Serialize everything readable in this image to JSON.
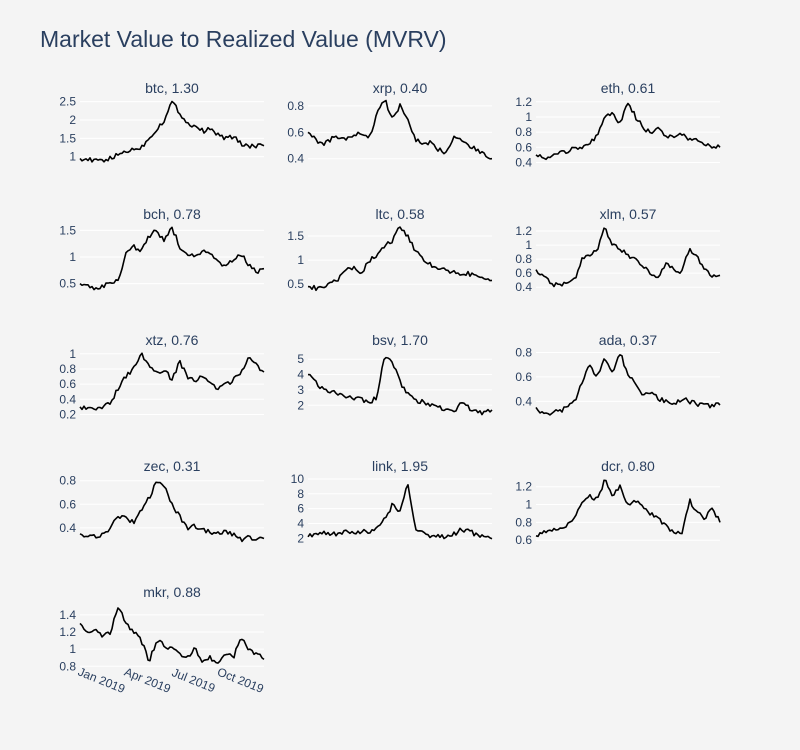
{
  "title": "Market Value to Realized Value (MVRV)",
  "colors": {
    "background": "#f4f4f4",
    "text": "#2a3f5f",
    "line": "#000000",
    "grid": "#ffffff"
  },
  "x_tick_labels": [
    "Jan 2019",
    "Apr 2019",
    "Jul 2019",
    "Oct 2019"
  ],
  "chart_data": [
    {
      "type": "line",
      "title": "btc, 1.30",
      "series": [
        {
          "values": [
            0.95,
            0.92,
            0.88,
            0.9,
            0.95,
            1.05,
            1.15,
            1.2,
            1.25,
            1.5,
            1.75,
            2.0,
            2.5,
            2.2,
            1.9,
            1.85,
            1.7,
            1.75,
            1.6,
            1.5,
            1.55,
            1.35,
            1.3,
            1.28,
            1.3
          ]
        }
      ],
      "yticks": [
        1,
        1.5,
        2,
        2.5
      ],
      "ytick_labels": [
        "1",
        "1.5",
        "2",
        "2.5"
      ],
      "ylim": [
        0.8,
        2.6
      ]
    },
    {
      "type": "line",
      "title": "xrp, 0.40",
      "series": [
        {
          "values": [
            0.6,
            0.55,
            0.5,
            0.55,
            0.56,
            0.55,
            0.57,
            0.6,
            0.55,
            0.75,
            0.85,
            0.7,
            0.8,
            0.7,
            0.55,
            0.5,
            0.52,
            0.47,
            0.45,
            0.57,
            0.55,
            0.5,
            0.47,
            0.43,
            0.4
          ]
        }
      ],
      "yticks": [
        0.4,
        0.6,
        0.8
      ],
      "ytick_labels": [
        "0.4",
        "0.6",
        "0.8"
      ],
      "ylim": [
        0.36,
        0.86
      ]
    },
    {
      "type": "line",
      "title": "eth, 0.61",
      "series": [
        {
          "values": [
            0.5,
            0.45,
            0.45,
            0.55,
            0.55,
            0.6,
            0.6,
            0.65,
            0.75,
            1.0,
            1.05,
            0.9,
            1.2,
            1.0,
            0.85,
            0.8,
            0.85,
            0.75,
            0.75,
            0.78,
            0.7,
            0.7,
            0.65,
            0.6,
            0.6
          ]
        }
      ],
      "yticks": [
        0.4,
        0.6,
        0.8,
        1,
        1.2
      ],
      "ytick_labels": [
        "0.4",
        "0.6",
        "0.8",
        "1",
        "1.2"
      ],
      "ylim": [
        0.38,
        1.25
      ]
    },
    {
      "type": "line",
      "title": "bch, 0.78",
      "series": [
        {
          "values": [
            0.5,
            0.45,
            0.42,
            0.45,
            0.5,
            0.55,
            1.1,
            1.2,
            1.1,
            1.4,
            1.5,
            1.3,
            1.55,
            1.2,
            1.05,
            1.0,
            1.1,
            1.05,
            0.9,
            0.8,
            0.95,
            1.05,
            0.85,
            0.72,
            0.78
          ]
        }
      ],
      "yticks": [
        0.5,
        1,
        1.5
      ],
      "ytick_labels": [
        "0.5",
        "1",
        "1.5"
      ],
      "ylim": [
        0.38,
        1.62
      ]
    },
    {
      "type": "line",
      "title": "ltc, 0.58",
      "series": [
        {
          "values": [
            0.45,
            0.42,
            0.45,
            0.5,
            0.6,
            0.8,
            0.85,
            0.75,
            1.0,
            1.1,
            1.3,
            1.4,
            1.7,
            1.5,
            1.2,
            1.0,
            0.9,
            0.85,
            0.8,
            0.75,
            0.7,
            0.72,
            0.65,
            0.6,
            0.58
          ]
        }
      ],
      "yticks": [
        0.5,
        1,
        1.5
      ],
      "ytick_labels": [
        "0.5",
        "1",
        "1.5"
      ],
      "ylim": [
        0.38,
        1.75
      ]
    },
    {
      "type": "line",
      "title": "xlm, 0.57",
      "series": [
        {
          "values": [
            0.65,
            0.55,
            0.45,
            0.42,
            0.45,
            0.5,
            0.8,
            0.85,
            0.95,
            1.25,
            1.0,
            0.95,
            0.85,
            0.8,
            0.7,
            0.6,
            0.55,
            0.75,
            0.65,
            0.6,
            0.95,
            0.85,
            0.65,
            0.55,
            0.57
          ]
        }
      ],
      "yticks": [
        0.4,
        0.6,
        0.8,
        1,
        1.2
      ],
      "ytick_labels": [
        "0.4",
        "0.6",
        "0.8",
        "1",
        "1.2"
      ],
      "ylim": [
        0.36,
        1.3
      ]
    },
    {
      "type": "line",
      "title": "xtz, 0.76",
      "series": [
        {
          "values": [
            0.3,
            0.28,
            0.27,
            0.3,
            0.35,
            0.55,
            0.7,
            0.8,
            1.0,
            0.85,
            0.75,
            0.8,
            0.65,
            0.9,
            0.7,
            0.65,
            0.7,
            0.6,
            0.55,
            0.6,
            0.65,
            0.75,
            0.95,
            0.85,
            0.76
          ]
        }
      ],
      "yticks": [
        0.2,
        0.4,
        0.6,
        0.8,
        1
      ],
      "ytick_labels": [
        "0.2",
        "0.4",
        "0.6",
        "0.8",
        "1"
      ],
      "ylim": [
        0.18,
        1.05
      ]
    },
    {
      "type": "line",
      "title": "bsv, 1.70",
      "series": [
        {
          "values": [
            4.0,
            3.5,
            3.0,
            2.9,
            2.8,
            2.6,
            2.5,
            2.4,
            2.2,
            2.5,
            5.3,
            4.8,
            3.5,
            2.8,
            2.3,
            2.2,
            2.0,
            1.9,
            1.7,
            1.5,
            2.2,
            1.8,
            1.6,
            1.5,
            1.7
          ]
        }
      ],
      "yticks": [
        2,
        3,
        4,
        5
      ],
      "ytick_labels": [
        "2",
        "3",
        "4",
        "5"
      ],
      "ylim": [
        1.3,
        5.6
      ]
    },
    {
      "type": "line",
      "title": "ada, 0.37",
      "series": [
        {
          "values": [
            0.35,
            0.3,
            0.3,
            0.32,
            0.35,
            0.4,
            0.55,
            0.7,
            0.6,
            0.75,
            0.65,
            0.8,
            0.6,
            0.55,
            0.45,
            0.48,
            0.42,
            0.4,
            0.38,
            0.42,
            0.4,
            0.38,
            0.36,
            0.37,
            0.37
          ]
        }
      ],
      "yticks": [
        0.4,
        0.6,
        0.8
      ],
      "ytick_labels": [
        "0.4",
        "0.6",
        "0.8"
      ],
      "ylim": [
        0.28,
        0.82
      ]
    },
    {
      "type": "line",
      "title": "zec, 0.31",
      "series": [
        {
          "values": [
            0.35,
            0.33,
            0.32,
            0.35,
            0.4,
            0.5,
            0.48,
            0.45,
            0.55,
            0.65,
            0.8,
            0.75,
            0.6,
            0.5,
            0.4,
            0.42,
            0.38,
            0.36,
            0.35,
            0.38,
            0.34,
            0.3,
            0.32,
            0.31,
            0.31
          ]
        }
      ],
      "yticks": [
        0.4,
        0.6,
        0.8
      ],
      "ytick_labels": [
        "0.4",
        "0.6",
        "0.8"
      ],
      "ylim": [
        0.28,
        0.84
      ]
    },
    {
      "type": "line",
      "title": "link, 1.95",
      "series": [
        {
          "values": [
            2.2,
            2.5,
            2.8,
            2.5,
            2.6,
            2.8,
            2.6,
            3.0,
            2.8,
            3.2,
            4.5,
            6.5,
            5.5,
            9.8,
            3.2,
            2.6,
            2.4,
            2.2,
            2.3,
            2.5,
            3.2,
            3.0,
            2.4,
            2.1,
            1.95
          ]
        }
      ],
      "yticks": [
        2,
        4,
        6,
        8,
        10
      ],
      "ytick_labels": [
        "2",
        "4",
        "6",
        "8",
        "10"
      ],
      "ylim": [
        1.5,
        10.4
      ]
    },
    {
      "type": "line",
      "title": "dcr, 0.80",
      "series": [
        {
          "values": [
            0.65,
            0.68,
            0.7,
            0.75,
            0.75,
            0.85,
            1.0,
            1.1,
            1.05,
            1.28,
            1.1,
            1.2,
            1.0,
            1.05,
            0.95,
            0.9,
            0.85,
            0.75,
            0.7,
            0.65,
            1.05,
            0.9,
            0.85,
            0.95,
            0.8
          ]
        }
      ],
      "yticks": [
        0.6,
        0.8,
        1,
        1.2
      ],
      "ytick_labels": [
        "0.6",
        "0.8",
        "1",
        "1.2"
      ],
      "ylim": [
        0.58,
        1.32
      ]
    },
    {
      "type": "line",
      "title": "mkr, 0.88",
      "series": [
        {
          "values": [
            1.3,
            1.2,
            1.25,
            1.15,
            1.2,
            1.5,
            1.3,
            1.2,
            1.1,
            0.85,
            1.1,
            1.05,
            1.0,
            0.95,
            0.9,
            1.0,
            0.85,
            0.9,
            0.85,
            0.95,
            0.9,
            1.15,
            1.0,
            0.95,
            0.88
          ]
        }
      ],
      "yticks": [
        0.8,
        1,
        1.2,
        1.4
      ],
      "ytick_labels": [
        "0.8",
        "1",
        "1.2",
        "1.4"
      ],
      "ylim": [
        0.78,
        1.55
      ]
    }
  ]
}
